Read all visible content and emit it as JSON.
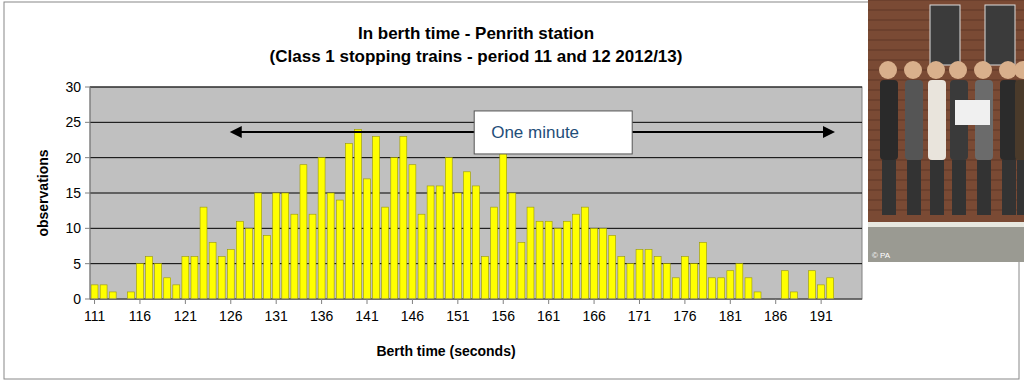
{
  "chart_data": {
    "type": "histogram",
    "title": "In berth time - Penrith station",
    "subtitle": "(Class 1 stopping trains - period 11 and 12 2012/13)",
    "x_label": "Berth time (seconds)",
    "y_label": "observations",
    "annotation": "One minute",
    "photo_credit": "© PA",
    "bins": [
      110.5,
      111.5,
      112.5,
      113.5,
      114.5,
      115.5,
      116.5,
      117.5,
      118.5,
      119.5,
      120.5,
      121.5,
      122.5,
      123.5,
      124.5,
      125.5,
      126.5,
      127.5,
      128.5,
      129.5,
      130.5,
      131.5,
      132.5,
      133.5,
      134.5,
      135.5,
      136.5,
      137.5,
      138.5,
      139.5,
      140.5,
      141.5,
      142.5,
      143.5,
      144.5,
      145.5,
      146.5,
      147.5,
      148.5,
      149.5,
      150.5,
      151.5,
      152.5,
      153.5,
      154.5,
      155.5,
      156.5,
      157.5,
      158.5,
      159.5,
      160.5,
      161.5,
      162.5,
      163.5,
      164.5,
      165.5,
      166.5,
      167.5,
      168.5,
      169.5,
      170.5,
      171.5,
      172.5,
      173.5,
      174.5,
      175.5,
      176.5,
      177.5,
      178.5,
      179.5,
      180.5,
      181.5,
      182.5,
      183.5,
      184.5,
      185.5,
      186.5,
      187.5,
      188.5,
      189.5,
      190.5,
      191.5,
      192.5
    ],
    "values": [
      2,
      2,
      1,
      0,
      1,
      5,
      6,
      5,
      3,
      2,
      6,
      6,
      13,
      8,
      6,
      7,
      11,
      10,
      15,
      9,
      15,
      15,
      12,
      19,
      12,
      20,
      15,
      14,
      22,
      24,
      17,
      23,
      13,
      20,
      23,
      19,
      12,
      16,
      16,
      20,
      15,
      18,
      16,
      6,
      13,
      21,
      15,
      8,
      13,
      11,
      11,
      10,
      11,
      12,
      13,
      10,
      10,
      9,
      6,
      5,
      7,
      7,
      6,
      5,
      3,
      6,
      5,
      8,
      3,
      3,
      4,
      5,
      3,
      1,
      0,
      0,
      4,
      1,
      0,
      4,
      2,
      3
    ],
    "color": "#ffff00",
    "xlim": [
      110.5,
      195.5
    ],
    "xticks": [
      111,
      116,
      121,
      126,
      131,
      136,
      141,
      146,
      151,
      156,
      161,
      166,
      171,
      176,
      181,
      186,
      191
    ],
    "ylim": [
      0,
      30
    ],
    "yticks": [
      0,
      5,
      10,
      15,
      20,
      25,
      30
    ],
    "grid": true
  }
}
